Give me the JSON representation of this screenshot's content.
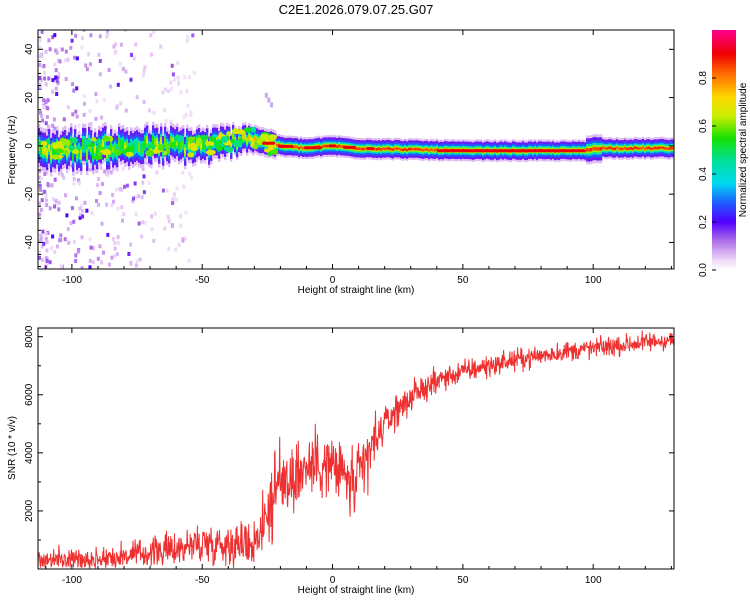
{
  "figure_title": "C2E1.2026.079.07.25.G07",
  "chart_data": [
    {
      "type": "heatmap",
      "title": "C2E1.2026.079.07.25.G07",
      "xlabel": "Height of straight line (km)",
      "ylabel": "Frequency (Hz)",
      "xlim": [
        -113,
        131
      ],
      "ylim": [
        -51,
        48
      ],
      "xticks": [
        -100,
        -50,
        0,
        50,
        100
      ],
      "yticks": [
        -40,
        -20,
        0,
        20,
        40
      ],
      "xtick_labels": [
        "-100",
        "-50",
        "0",
        "50",
        "100"
      ],
      "ytick_labels": [
        "-40",
        "-20",
        "0",
        "20",
        "40"
      ],
      "colorbar": {
        "label": "Normalized spectral amplitude",
        "range": [
          0,
          1
        ],
        "ticks": [
          0,
          0.2,
          0.4,
          0.6,
          0.8
        ],
        "tick_labels": [
          "0.0",
          "0.2",
          "0.4",
          "0.6",
          "0.8"
        ]
      },
      "ridge_frequency": [
        {
          "x": -113,
          "f": -2
        },
        {
          "x": -90,
          "f": -1
        },
        {
          "x": -70,
          "f": 0
        },
        {
          "x": -55,
          "f": 0
        },
        {
          "x": -45,
          "f": 0
        },
        {
          "x": -38,
          "f": 2
        },
        {
          "x": -33,
          "f": 4
        },
        {
          "x": -28,
          "f": 2
        },
        {
          "x": -20,
          "f": 0
        },
        {
          "x": -10,
          "f": -1
        },
        {
          "x": 0,
          "f": 0
        },
        {
          "x": 10,
          "f": -1
        },
        {
          "x": 50,
          "f": -2
        },
        {
          "x": 97,
          "f": -2
        },
        {
          "x": 101,
          "f": -1
        },
        {
          "x": 110,
          "f": -1
        },
        {
          "x": 131,
          "f": -1
        }
      ]
    },
    {
      "type": "line",
      "xlabel": "Height of straight line (km)",
      "ylabel": "SNR (10 * v/v)",
      "xlim": [
        -113,
        131
      ],
      "ylim": [
        0,
        8300
      ],
      "xticks": [
        -100,
        -50,
        0,
        50,
        100
      ],
      "yticks": [
        2000,
        4000,
        6000,
        8000
      ],
      "xtick_labels": [
        "-100",
        "-50",
        "0",
        "50",
        "100"
      ],
      "ytick_labels": [
        "2000",
        "4000",
        "6000",
        "8000"
      ],
      "color": "#ee3030",
      "series": [
        {
          "name": "SNR",
          "x": [
            -113,
            -90,
            -75,
            -60,
            -50,
            -40,
            -30,
            -25,
            -20,
            -15,
            -10,
            -5,
            0,
            5,
            8,
            10,
            15,
            20,
            25,
            30,
            35,
            40,
            50,
            60,
            70,
            80,
            90,
            100,
            110,
            120,
            131
          ],
          "y": [
            300,
            350,
            500,
            700,
            900,
            850,
            900,
            2000,
            3000,
            3200,
            3500,
            3700,
            3500,
            3200,
            2800,
            3000,
            4200,
            5000,
            5500,
            5900,
            6200,
            6500,
            6800,
            7000,
            7200,
            7350,
            7500,
            7600,
            7700,
            7800,
            7900
          ],
          "noise_amplitude": [
            400,
            450,
            550,
            650,
            800,
            800,
            900,
            1500,
            1700,
            1500,
            1300,
            1300,
            1200,
            1400,
            1600,
            1500,
            1100,
            700,
            600,
            550,
            500,
            500,
            450,
            450,
            400,
            400,
            400,
            400,
            400,
            400,
            400
          ]
        }
      ]
    }
  ]
}
